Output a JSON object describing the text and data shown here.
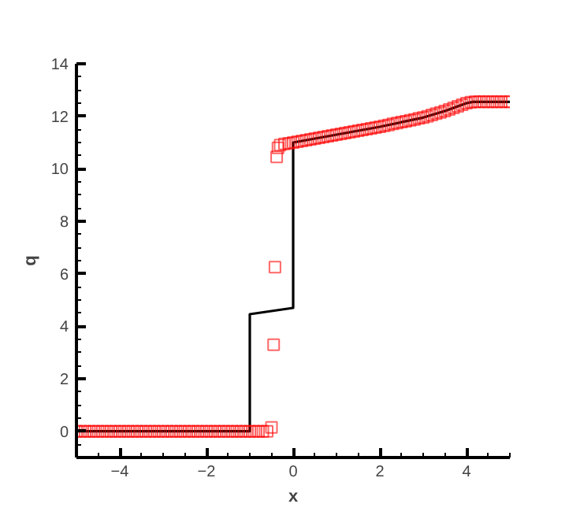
{
  "chart_data": {
    "type": "line",
    "xlabel": "x",
    "ylabel": "q",
    "xlim": [
      -5,
      5
    ],
    "ylim": [
      -1,
      14
    ],
    "xticks": [
      -4,
      -2,
      0,
      2,
      4,
      {
        "value": -4.5,
        "label": null
      },
      {
        "value": -3.5,
        "label": null
      },
      {
        "value": -3,
        "label": null
      },
      {
        "value": -2.5,
        "label": null
      },
      {
        "value": -1.5,
        "label": null
      },
      {
        "value": -1,
        "label": null
      },
      {
        "value": -0.5,
        "label": null
      },
      {
        "value": 0.5,
        "label": null
      },
      {
        "value": 1,
        "label": null
      },
      {
        "value": 1.5,
        "label": null
      },
      {
        "value": 2.5,
        "label": null
      },
      {
        "value": 3,
        "label": null
      },
      {
        "value": 3.5,
        "label": null
      },
      {
        "value": 4.5,
        "label": null
      },
      {
        "value": 5,
        "label": null
      }
    ],
    "yticks": [
      0,
      2,
      4,
      6,
      8,
      10,
      12,
      14,
      {
        "value": -0.5,
        "label": null
      },
      {
        "value": 0.5,
        "label": null
      },
      {
        "value": 1,
        "label": null
      },
      {
        "value": 1.5,
        "label": null
      },
      {
        "value": 2.5,
        "label": null
      },
      {
        "value": 3,
        "label": null
      },
      {
        "value": 3.5,
        "label": null
      },
      {
        "value": 4.5,
        "label": null
      },
      {
        "value": 5,
        "label": null
      },
      {
        "value": 5.5,
        "label": null
      },
      {
        "value": 6.5,
        "label": null
      },
      {
        "value": 7,
        "label": null
      },
      {
        "value": 7.5,
        "label": null
      },
      {
        "value": 8.5,
        "label": null
      },
      {
        "value": 9,
        "label": null
      },
      {
        "value": 9.5,
        "label": null
      },
      {
        "value": 10.5,
        "label": null
      },
      {
        "value": 11,
        "label": null
      },
      {
        "value": 11.5,
        "label": null
      },
      {
        "value": 12.5,
        "label": null
      },
      {
        "value": 13,
        "label": null
      },
      {
        "value": 13.5,
        "label": null
      }
    ],
    "grid": false,
    "series": [
      {
        "color": "#000000",
        "line_style": "solid",
        "marker": "none",
        "x": [
          -5,
          -1,
          -1,
          0,
          0,
          1,
          2,
          3,
          3.5,
          4,
          4.15,
          5
        ],
        "values": [
          0,
          0,
          4.46,
          4.7,
          11.0,
          11.3,
          11.6,
          11.95,
          12.2,
          12.5,
          12.55,
          12.55
        ]
      },
      {
        "type": "scatter",
        "color": "#ff0000",
        "marker": "square",
        "x": [
          -5,
          -4.9,
          -4.8,
          -4.7,
          -4.6,
          -4.5,
          -4.4,
          -4.3,
          -4.2,
          -4.1,
          -4,
          -3.9,
          -3.8,
          -3.7,
          -3.6,
          -3.5,
          -3.4,
          -3.3,
          -3.2,
          -3.1,
          -3,
          -2.9,
          -2.8,
          -2.7,
          -2.6,
          -2.5,
          -2.4,
          -2.3,
          -2.2,
          -2.1,
          -2,
          -1.9,
          -1.8,
          -1.7,
          -1.6,
          -1.5,
          -1.4,
          -1.3,
          -1.2,
          -1.1,
          -1,
          -0.9,
          -0.8,
          -0.7,
          -0.6,
          -0.5,
          -0.45,
          -0.42,
          -0.38,
          -0.35,
          -0.3,
          -0.2,
          -0.1,
          0,
          0.1,
          0.2,
          0.3,
          0.4,
          0.5,
          0.6,
          0.7,
          0.8,
          0.9,
          1,
          1.1,
          1.2,
          1.3,
          1.4,
          1.5,
          1.6,
          1.7,
          1.8,
          1.9,
          2,
          2.1,
          2.2,
          2.3,
          2.4,
          2.5,
          2.6,
          2.7,
          2.8,
          2.9,
          3,
          3.1,
          3.2,
          3.3,
          3.4,
          3.5,
          3.6,
          3.7,
          3.8,
          3.9,
          4,
          4.1,
          4.2,
          4.3,
          4.4,
          4.5,
          4.6,
          4.7,
          4.8,
          4.9,
          5
        ],
        "values": [
          0,
          0,
          0,
          0,
          0,
          0,
          0,
          0,
          0,
          0,
          0,
          0,
          0,
          0,
          0,
          0,
          0,
          0,
          0,
          0,
          0,
          0,
          0,
          0,
          0,
          0,
          0,
          0,
          0,
          0,
          0,
          0,
          0,
          0,
          0,
          0,
          0,
          0,
          0,
          0,
          0,
          0,
          0,
          0,
          0,
          0.15,
          3.3,
          6.25,
          10.45,
          10.8,
          10.9,
          10.95,
          10.97,
          11.0,
          11.03,
          11.06,
          11.09,
          11.12,
          11.15,
          11.18,
          11.21,
          11.24,
          11.27,
          11.3,
          11.33,
          11.36,
          11.39,
          11.42,
          11.45,
          11.48,
          11.51,
          11.54,
          11.57,
          11.6,
          11.64,
          11.67,
          11.71,
          11.74,
          11.78,
          11.81,
          11.85,
          11.88,
          11.92,
          11.95,
          12.0,
          12.05,
          12.1,
          12.15,
          12.2,
          12.26,
          12.32,
          12.38,
          12.44,
          12.5,
          12.54,
          12.55,
          12.55,
          12.55,
          12.55,
          12.55,
          12.55,
          12.55,
          12.55,
          12.55
        ]
      }
    ]
  }
}
